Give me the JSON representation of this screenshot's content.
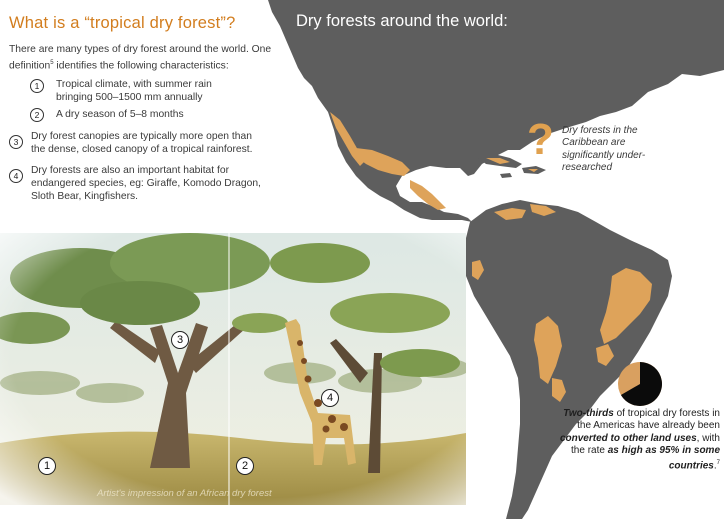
{
  "left_panel": {
    "heading": "What is a “tropical dry forest”?",
    "intro_part1": "There are many types of dry forest around the world. One definition",
    "intro_sup": "5",
    "intro_part2": " identifies the following characteristics:",
    "characteristics": [
      {
        "number": "1",
        "text": "Tropical climate, with summer rain bringing 500–1500 mm annually"
      },
      {
        "number": "2",
        "text": "A dry season of 5–8 months"
      },
      {
        "number": "3",
        "text": "Dry forest canopies are typically more open than the dense, closed canopy of a tropical rainforest."
      },
      {
        "number": "4",
        "text": "Dry forests are also an important habitat for endangered species, eg: Giraffe, Komodo Dragon, Sloth Bear, Kingfishers."
      }
    ]
  },
  "map": {
    "title": "Dry forests around the world:",
    "caribbean_mark": "?",
    "caribbean_note": "Dry forests in the Caribbean are significantly under-researched"
  },
  "illustration": {
    "caption": "Artist's impression of an African dry forest",
    "markers": [
      "1",
      "2",
      "3",
      "4"
    ]
  },
  "fact": {
    "p1": "Two-thirds",
    "p2": " of tropical dry forests in the Americas have already been ",
    "p3": "converted to other land uses",
    "p4": ", with the rate ",
    "p5": "as high as 95% in some countries",
    "p6": ".",
    "sup": "7",
    "pie_fraction": 0.667
  },
  "colors": {
    "land": "#5e5e5e",
    "dry_forest": "#dea35a",
    "heading": "#d27d1e",
    "pie_dark": "#0b0b0b",
    "pie_light": "#d9a060"
  }
}
